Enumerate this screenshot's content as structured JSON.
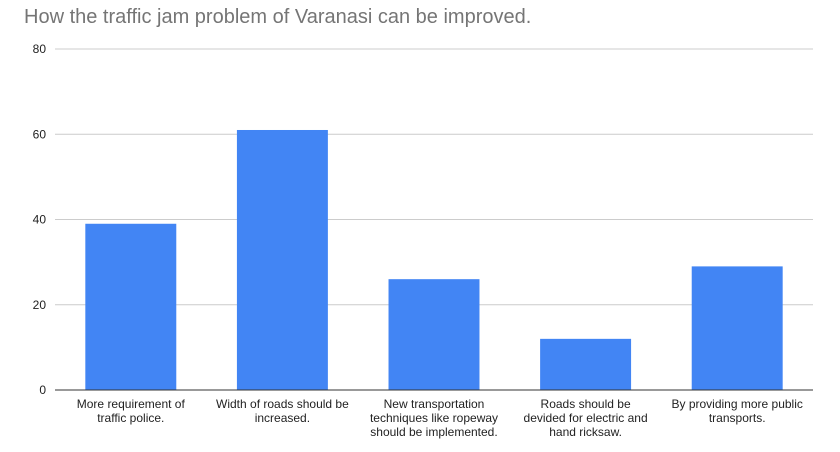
{
  "chart_data": {
    "type": "bar",
    "title": "How the traffic jam problem of Varanasi can be improved.",
    "xlabel": "",
    "ylabel": "",
    "ylim": [
      0,
      80
    ],
    "yticks": [
      0,
      20,
      40,
      60,
      80
    ],
    "grid": true,
    "legend": "none",
    "categories": [
      [
        "More requirement of",
        "traffic police."
      ],
      [
        "Width of roads should be",
        "increased."
      ],
      [
        "New transportation",
        "techniques like ropeway",
        "should be implemented."
      ],
      [
        "Roads should be",
        "devided for electric and",
        "hand ricksaw."
      ],
      [
        "By providing more public",
        "transports."
      ]
    ],
    "values": [
      39,
      61,
      26,
      12,
      29
    ],
    "bar_color": "#4285f4"
  }
}
